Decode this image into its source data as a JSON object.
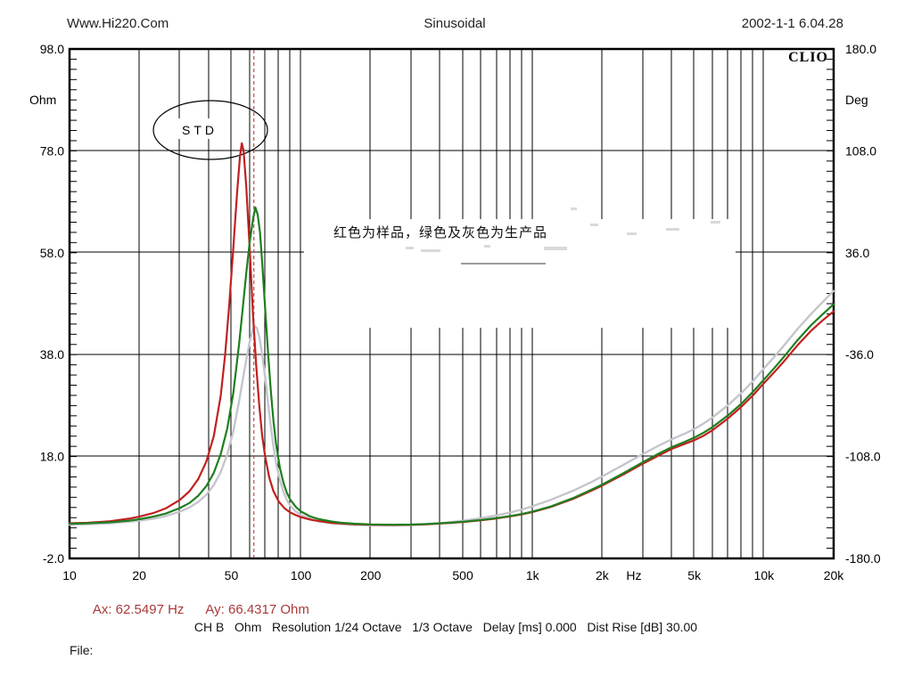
{
  "header": {
    "left": "Www.Hi220.Com",
    "center": "Sinusoidal",
    "right": "2002-1-1 6.04.28"
  },
  "branding": {
    "logo": "CLIO"
  },
  "annotations": {
    "std_label": "STD",
    "note_cn": "红色为样品，绿色及灰色为生产品"
  },
  "cursor": {
    "ax_label": "Ax: 62.5497 Hz",
    "ay_label": "Ay: 66.4317 Ohm",
    "ax_hz": 62.5497,
    "ay_ohm": 66.4317,
    "color": "#a83a3a",
    "line_color": "#bf4a4a"
  },
  "footer": {
    "status_line": "CH B   Ohm   Resolution 1/24 Octave   1/3 Octave   Delay [ms] 0.000   Dist Rise [dB] 30.00",
    "file_label": "File:"
  },
  "chart_data": {
    "type": "line",
    "x_scale": "log",
    "x_min": 10,
    "x_max": 20000,
    "x_unit": "Hz",
    "grid": true,
    "x_gridlines": [
      10,
      20,
      30,
      40,
      50,
      60,
      70,
      80,
      90,
      100,
      200,
      300,
      400,
      500,
      600,
      700,
      800,
      900,
      1000,
      2000,
      3000,
      4000,
      5000,
      6000,
      7000,
      8000,
      9000,
      10000,
      20000
    ],
    "x_labeled_ticks": [
      {
        "f": 10,
        "label": "10"
      },
      {
        "f": 20,
        "label": "20"
      },
      {
        "f": 50,
        "label": "50"
      },
      {
        "f": 100,
        "label": "100"
      },
      {
        "f": 200,
        "label": "200"
      },
      {
        "f": 500,
        "label": "500"
      },
      {
        "f": 1000,
        "label": "1k"
      },
      {
        "f": 2000,
        "label": "2k"
      },
      {
        "f": 5000,
        "label": "5k"
      },
      {
        "f": 10000,
        "label": "10k"
      },
      {
        "f": 20000,
        "label": "20k"
      }
    ],
    "y_left": {
      "label": "Ohm",
      "min": -2,
      "max": 98,
      "ticks": [
        98.0,
        78.0,
        58.0,
        38.0,
        18.0,
        -2.0
      ],
      "minor_step": 2
    },
    "y_right": {
      "label": "Deg",
      "min": -180,
      "max": 180,
      "ticks": [
        180.0,
        108.0,
        36.0,
        -36.0,
        -108.0,
        -180.0
      ],
      "minor_step": 7.2
    },
    "cursor_line_hz": 62.5497,
    "series": [
      {
        "name": "sample-red",
        "legend_cn": "红色为样品",
        "color": "#c12020",
        "width": 2.2,
        "points": [
          [
            10,
            4.9
          ],
          [
            12,
            5.0
          ],
          [
            15,
            5.3
          ],
          [
            18,
            5.8
          ],
          [
            20,
            6.2
          ],
          [
            23,
            6.9
          ],
          [
            26,
            7.8
          ],
          [
            30,
            9.5
          ],
          [
            33,
            11.2
          ],
          [
            36,
            13.6
          ],
          [
            39,
            17
          ],
          [
            42,
            22
          ],
          [
            45,
            30
          ],
          [
            47,
            38
          ],
          [
            49,
            48
          ],
          [
            51,
            59
          ],
          [
            53,
            70
          ],
          [
            54.5,
            77
          ],
          [
            55.5,
            79.5
          ],
          [
            56.5,
            78
          ],
          [
            58,
            71
          ],
          [
            60,
            59
          ],
          [
            62,
            46
          ],
          [
            64,
            36
          ],
          [
            66,
            28
          ],
          [
            68,
            22
          ],
          [
            70,
            18
          ],
          [
            73,
            13.8
          ],
          [
            76,
            11.2
          ],
          [
            80,
            9.2
          ],
          [
            85,
            7.8
          ],
          [
            90,
            7.0
          ],
          [
            95,
            6.5
          ],
          [
            100,
            6.1
          ],
          [
            110,
            5.6
          ],
          [
            120,
            5.3
          ],
          [
            135,
            5.0
          ],
          [
            150,
            4.85
          ],
          [
            170,
            4.72
          ],
          [
            200,
            4.62
          ],
          [
            250,
            4.57
          ],
          [
            300,
            4.62
          ],
          [
            350,
            4.72
          ],
          [
            400,
            4.85
          ],
          [
            450,
            5.0
          ],
          [
            500,
            5.15
          ],
          [
            600,
            5.5
          ],
          [
            700,
            5.85
          ],
          [
            800,
            6.25
          ],
          [
            900,
            6.65
          ],
          [
            1000,
            7.1
          ],
          [
            1200,
            8.1
          ],
          [
            1500,
            9.7
          ],
          [
            1800,
            11.3
          ],
          [
            2000,
            12.3
          ],
          [
            2500,
            14.6
          ],
          [
            3000,
            16.6
          ],
          [
            3500,
            18.2
          ],
          [
            4000,
            19.5
          ],
          [
            4500,
            20.4
          ],
          [
            5000,
            21.2
          ],
          [
            5500,
            22.1
          ],
          [
            6000,
            23.2
          ],
          [
            7000,
            25.5
          ],
          [
            8000,
            27.8
          ],
          [
            9000,
            30.1
          ],
          [
            10000,
            32.4
          ],
          [
            11000,
            34.4
          ],
          [
            12000,
            36.3
          ],
          [
            14000,
            39.9
          ],
          [
            16000,
            42.7
          ],
          [
            18000,
            44.8
          ],
          [
            20000,
            46.5
          ]
        ]
      },
      {
        "name": "production-green",
        "legend_cn": "绿色为生产品",
        "color": "#1f7e1f",
        "width": 2.2,
        "points": [
          [
            10,
            4.8
          ],
          [
            12,
            4.9
          ],
          [
            15,
            5.1
          ],
          [
            18,
            5.4
          ],
          [
            20,
            5.7
          ],
          [
            23,
            6.2
          ],
          [
            26,
            6.8
          ],
          [
            30,
            7.9
          ],
          [
            33,
            8.9
          ],
          [
            36,
            10.3
          ],
          [
            39,
            12.2
          ],
          [
            42,
            14.8
          ],
          [
            45,
            18.5
          ],
          [
            48,
            23.5
          ],
          [
            51,
            30.5
          ],
          [
            54,
            40
          ],
          [
            56,
            47
          ],
          [
            58,
            54
          ],
          [
            60,
            60
          ],
          [
            62,
            64.5
          ],
          [
            63.5,
            66.9
          ],
          [
            65,
            65.5
          ],
          [
            66.5,
            62
          ],
          [
            68,
            56
          ],
          [
            70,
            47
          ],
          [
            72,
            38.5
          ],
          [
            74,
            31
          ],
          [
            76,
            25
          ],
          [
            78,
            20.5
          ],
          [
            81,
            15.8
          ],
          [
            84,
            12.8
          ],
          [
            87,
            10.8
          ],
          [
            90,
            9.5
          ],
          [
            95,
            8.1
          ],
          [
            100,
            7.2
          ],
          [
            110,
            6.2
          ],
          [
            120,
            5.7
          ],
          [
            135,
            5.25
          ],
          [
            150,
            5.0
          ],
          [
            170,
            4.82
          ],
          [
            200,
            4.68
          ],
          [
            250,
            4.6
          ],
          [
            300,
            4.65
          ],
          [
            350,
            4.76
          ],
          [
            400,
            4.9
          ],
          [
            450,
            5.05
          ],
          [
            500,
            5.2
          ],
          [
            600,
            5.55
          ],
          [
            700,
            5.92
          ],
          [
            800,
            6.32
          ],
          [
            900,
            6.72
          ],
          [
            1000,
            7.2
          ],
          [
            1200,
            8.2
          ],
          [
            1500,
            9.85
          ],
          [
            1800,
            11.5
          ],
          [
            2000,
            12.5
          ],
          [
            2500,
            14.85
          ],
          [
            3000,
            16.9
          ],
          [
            3500,
            18.55
          ],
          [
            4000,
            19.85
          ],
          [
            4500,
            20.8
          ],
          [
            5000,
            21.7
          ],
          [
            5500,
            22.7
          ],
          [
            6000,
            23.8
          ],
          [
            7000,
            26.1
          ],
          [
            8000,
            28.4
          ],
          [
            9000,
            30.8
          ],
          [
            10000,
            33.1
          ],
          [
            11000,
            35.2
          ],
          [
            12000,
            37.2
          ],
          [
            14000,
            40.9
          ],
          [
            16000,
            43.8
          ],
          [
            18000,
            46.0
          ],
          [
            20000,
            47.9
          ]
        ]
      },
      {
        "name": "production-gray",
        "legend_cn": "灰色为生产品",
        "color": "#c5c5cd",
        "width": 2.4,
        "points": [
          [
            10,
            4.6
          ],
          [
            12,
            4.7
          ],
          [
            15,
            4.9
          ],
          [
            18,
            5.2
          ],
          [
            20,
            5.4
          ],
          [
            23,
            5.8
          ],
          [
            26,
            6.3
          ],
          [
            30,
            7.2
          ],
          [
            33,
            8.0
          ],
          [
            36,
            9.1
          ],
          [
            39,
            10.5
          ],
          [
            42,
            12.4
          ],
          [
            45,
            15
          ],
          [
            48,
            18.4
          ],
          [
            51,
            23
          ],
          [
            54,
            28.8
          ],
          [
            56,
            33
          ],
          [
            58,
            37
          ],
          [
            60,
            40.5
          ],
          [
            62,
            43
          ],
          [
            63,
            43.6
          ],
          [
            64.5,
            43.2
          ],
          [
            66,
            41.5
          ],
          [
            68,
            38
          ],
          [
            70,
            33.5
          ],
          [
            72,
            28.5
          ],
          [
            74,
            24
          ],
          [
            76,
            20
          ],
          [
            78,
            16.8
          ],
          [
            81,
            13.4
          ],
          [
            84,
            11
          ],
          [
            87,
            9.4
          ],
          [
            90,
            8.3
          ],
          [
            95,
            7.2
          ],
          [
            100,
            6.5
          ],
          [
            110,
            5.7
          ],
          [
            120,
            5.25
          ],
          [
            135,
            4.9
          ],
          [
            150,
            4.72
          ],
          [
            170,
            4.58
          ],
          [
            200,
            4.5
          ],
          [
            250,
            4.46
          ],
          [
            300,
            4.55
          ],
          [
            350,
            4.7
          ],
          [
            400,
            4.9
          ],
          [
            450,
            5.15
          ],
          [
            500,
            5.4
          ],
          [
            600,
            5.9
          ],
          [
            700,
            6.45
          ],
          [
            800,
            7.0
          ],
          [
            900,
            7.6
          ],
          [
            1000,
            8.25
          ],
          [
            1200,
            9.5
          ],
          [
            1500,
            11.3
          ],
          [
            1800,
            13
          ],
          [
            2000,
            14.1
          ],
          [
            2500,
            16.5
          ],
          [
            3000,
            18.5
          ],
          [
            3500,
            20.1
          ],
          [
            4000,
            21.4
          ],
          [
            4500,
            22.4
          ],
          [
            5000,
            23.4
          ],
          [
            5500,
            24.5
          ],
          [
            6000,
            25.7
          ],
          [
            7000,
            28.1
          ],
          [
            8000,
            30.5
          ],
          [
            9000,
            32.9
          ],
          [
            10000,
            35.3
          ],
          [
            11000,
            37.4
          ],
          [
            12000,
            39.4
          ],
          [
            14000,
            43.1
          ],
          [
            16000,
            46.0
          ],
          [
            18000,
            48.4
          ],
          [
            20000,
            50.5
          ]
        ]
      }
    ]
  }
}
